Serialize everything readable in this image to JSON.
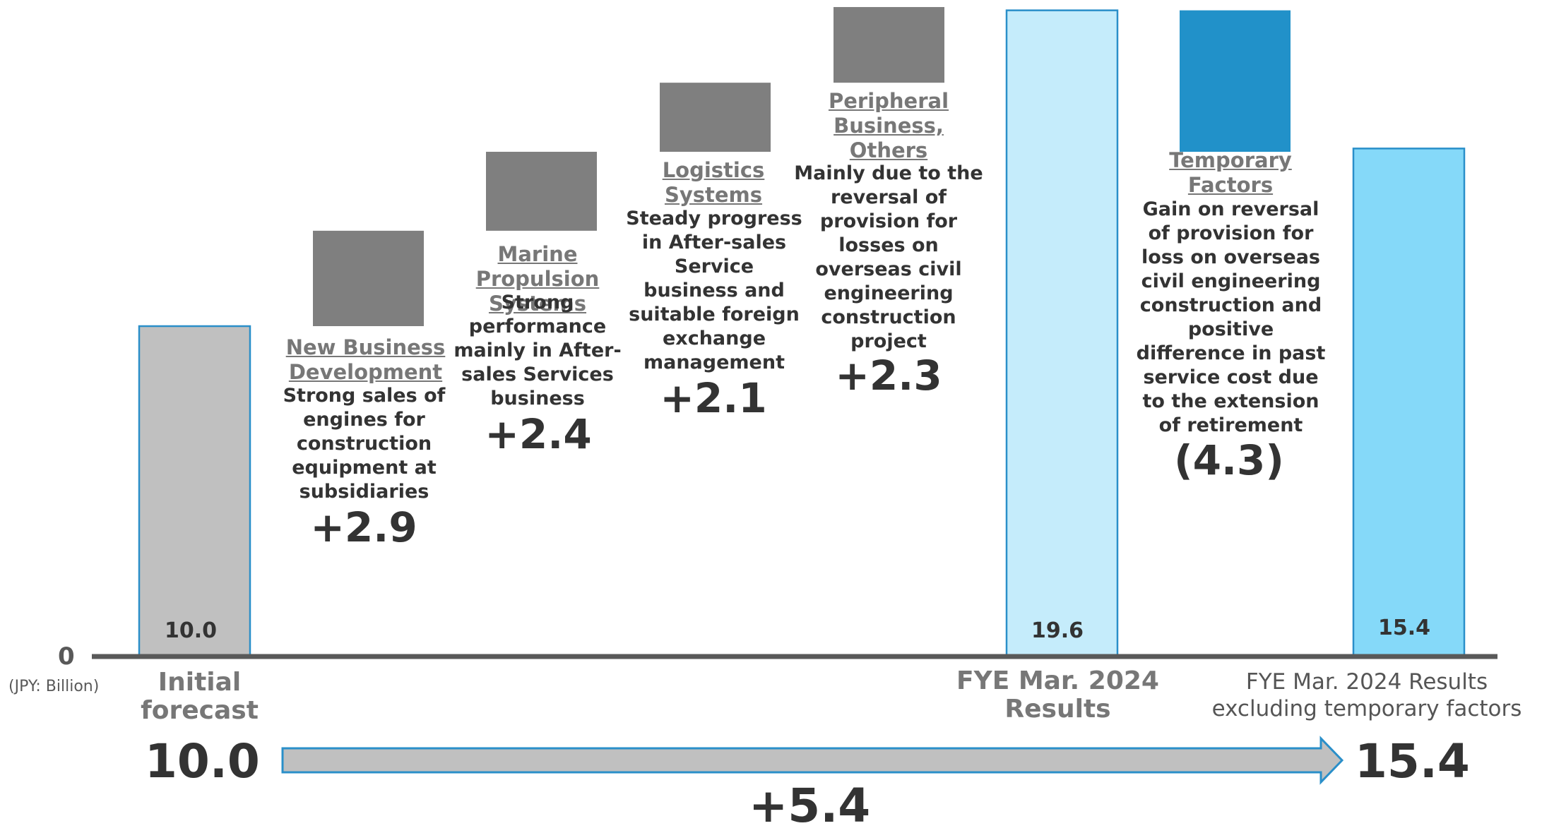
{
  "chart_data": {
    "type": "bar",
    "subtype": "waterfall",
    "unit_label": "(JPY: Billion)",
    "zero_label": "0",
    "colors": {
      "initial": "#c0c0c0",
      "increment": "#7f7f7f",
      "results": "#c5ecfb",
      "temporary": "#2191c9",
      "excl": "#85d9f9",
      "outline": "#2a8fc9",
      "axis": "#595959"
    },
    "bars": [
      {
        "key": "initial",
        "role": "total",
        "value": 10.0,
        "value_label": "10.0"
      },
      {
        "key": "new-business",
        "role": "increase",
        "value": 2.9,
        "category": "New Business Development",
        "description": "Strong sales of engines for construction equipment at subsidiaries",
        "delta_label": "+2.9"
      },
      {
        "key": "marine",
        "role": "increase",
        "value": 2.4,
        "category": "Marine Propulsion Systems",
        "description": "Strong performance mainly in After-sales Services business",
        "delta_label": "+2.4"
      },
      {
        "key": "logistics",
        "role": "increase",
        "value": 2.1,
        "category": "Logistics Systems",
        "description": "Steady progress in After-sales Service business and suitable foreign exchange management",
        "delta_label": "+2.1"
      },
      {
        "key": "peripheral",
        "role": "increase",
        "value": 2.3,
        "category": "Peripheral Business, Others",
        "description": "Mainly due to the reversal of provision for losses on overseas civil engineering construction project",
        "delta_label": "+2.3"
      },
      {
        "key": "results",
        "role": "total",
        "value": 19.6,
        "value_label": "19.6"
      },
      {
        "key": "temporary",
        "role": "decrease",
        "value": -4.3,
        "category": "Temporary Factors",
        "description": "Gain on reversal of provision for loss on overseas civil engineering construction and positive difference in past service cost due to the extension of retirement",
        "delta_label": "(4.3)"
      },
      {
        "key": "excl",
        "role": "total",
        "value": 15.4,
        "value_label": "15.4"
      }
    ],
    "x_labels": {
      "initial": "Initial forecast",
      "results": "FYE Mar. 2024 Results",
      "excl_line1": "FYE Mar. 2024 Results",
      "excl_line2": "excluding temporary factors"
    },
    "summary": {
      "start_value": "10.0",
      "end_value": "15.4",
      "change": "+5.4"
    }
  }
}
